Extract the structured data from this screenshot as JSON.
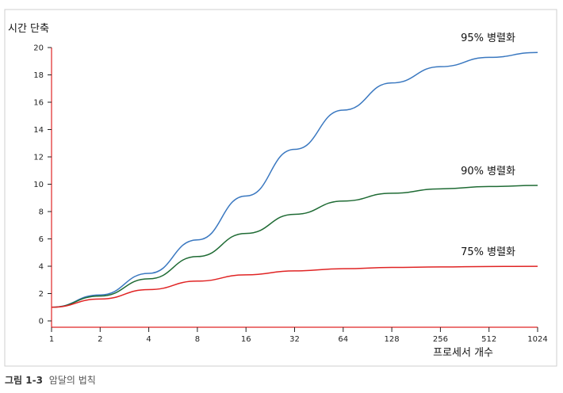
{
  "chart_data": {
    "type": "line",
    "ylabel": "시간 단축",
    "xlabel": "프로세서 개수",
    "categories": [
      "1",
      "2",
      "4",
      "8",
      "16",
      "32",
      "64",
      "128",
      "256",
      "512",
      "1024"
    ],
    "ylim": [
      0,
      20
    ],
    "yticks": [
      "0",
      "2",
      "4",
      "6",
      "8",
      "10",
      "12",
      "14",
      "16",
      "18",
      "20"
    ],
    "grid": false,
    "series": [
      {
        "name": "95% 병렬화",
        "color": "#3a78c0",
        "values": [
          1.0,
          1.9,
          3.48,
          5.93,
          9.14,
          12.55,
          15.42,
          17.41,
          18.6,
          19.28,
          19.64
        ]
      },
      {
        "name": "90% 병렬화",
        "color": "#1f6b34",
        "values": [
          1.0,
          1.82,
          3.08,
          4.71,
          6.4,
          7.8,
          8.77,
          9.34,
          9.66,
          9.83,
          9.91
        ]
      },
      {
        "name": "75% 병렬화",
        "color": "#e02424",
        "values": [
          1.0,
          1.6,
          2.29,
          2.91,
          3.37,
          3.66,
          3.82,
          3.91,
          3.95,
          3.98,
          3.99
        ]
      }
    ]
  },
  "caption": {
    "figure_number": "그림 1-3",
    "title": "암달의 법칙"
  },
  "colors": {
    "axis": "#e02424",
    "frame": "#cfcfcf"
  }
}
